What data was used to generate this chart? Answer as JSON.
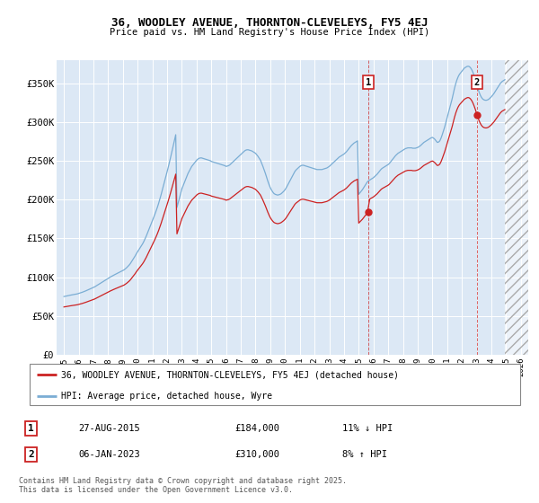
{
  "title": "36, WOODLEY AVENUE, THORNTON-CLEVELEYS, FY5 4EJ",
  "subtitle": "Price paid vs. HM Land Registry's House Price Index (HPI)",
  "ylim": [
    0,
    380000
  ],
  "yticks": [
    0,
    50000,
    100000,
    150000,
    200000,
    250000,
    300000,
    350000
  ],
  "ytick_labels": [
    "£0",
    "£50K",
    "£100K",
    "£150K",
    "£200K",
    "£250K",
    "£300K",
    "£350K"
  ],
  "background_color": "#dce8f5",
  "plot_bg_color": "#dce8f5",
  "shade_color": "#ccdaee",
  "hpi_color": "#7aadd4",
  "price_color": "#cc2222",
  "marker_color": "#cc2222",
  "sale1_date": 2015.65,
  "sale1_price": 184000,
  "sale1_label": "1",
  "sale2_date": 2023.02,
  "sale2_price": 310000,
  "sale2_label": "2",
  "legend_line1": "36, WOODLEY AVENUE, THORNTON-CLEVELEYS, FY5 4EJ (detached house)",
  "legend_line2": "HPI: Average price, detached house, Wyre",
  "table_row1_label": "1",
  "table_row1_date": "27-AUG-2015",
  "table_row1_price": "£184,000",
  "table_row1_hpi": "11% ↓ HPI",
  "table_row2_label": "2",
  "table_row2_date": "06-JAN-2023",
  "table_row2_price": "£310,000",
  "table_row2_hpi": "8% ↑ HPI",
  "footer": "Contains HM Land Registry data © Crown copyright and database right 2025.\nThis data is licensed under the Open Government Licence v3.0.",
  "hpi_base_values": [
    75000,
    75300,
    75600,
    76000,
    76400,
    76700,
    77000,
    77300,
    77600,
    77900,
    78200,
    78500,
    79000,
    79500,
    80000,
    80600,
    81200,
    81800,
    82500,
    83200,
    83800,
    84500,
    85200,
    85900,
    86600,
    87500,
    88500,
    89500,
    90500,
    91500,
    92500,
    93500,
    94500,
    95500,
    96500,
    97500,
    98500,
    99500,
    100400,
    101300,
    102200,
    103000,
    103800,
    104600,
    105400,
    106200,
    107000,
    107800,
    108500,
    109500,
    110800,
    112200,
    113800,
    115500,
    117500,
    120000,
    122500,
    125000,
    127500,
    130500,
    133000,
    135500,
    138000,
    140500,
    143000,
    146000,
    149500,
    153000,
    157000,
    161000,
    165000,
    169000,
    173000,
    177000,
    181000,
    185500,
    190000,
    195000,
    200500,
    206000,
    212000,
    218000,
    224000,
    230000,
    236000,
    242500,
    249000,
    256000,
    263000,
    270000,
    277000,
    284000,
    190000,
    196000,
    202000,
    208000,
    214000,
    218000,
    222000,
    226000,
    230000,
    234000,
    237000,
    240000,
    243000,
    245000,
    247000,
    249000,
    251000,
    252500,
    253500,
    254000,
    254000,
    253500,
    253000,
    252500,
    252000,
    251500,
    251000,
    250500,
    249500,
    249000,
    248500,
    248000,
    247500,
    247000,
    246500,
    246000,
    245500,
    245000,
    244500,
    244000,
    243000,
    243500,
    244000,
    245000,
    246500,
    248000,
    249500,
    251000,
    252500,
    254000,
    255500,
    257000,
    258500,
    260000,
    261500,
    263000,
    264000,
    264500,
    264500,
    264000,
    263500,
    263000,
    262000,
    261000,
    260000,
    258000,
    256000,
    253500,
    251000,
    247000,
    243000,
    238500,
    234000,
    229000,
    224000,
    219500,
    215500,
    212500,
    210000,
    208000,
    207000,
    206500,
    206000,
    206500,
    207000,
    208000,
    209500,
    211000,
    213000,
    215500,
    218500,
    221500,
    224500,
    227500,
    230500,
    233500,
    236500,
    238500,
    240000,
    241500,
    243000,
    244000,
    244500,
    244500,
    244000,
    243500,
    243000,
    242500,
    242000,
    241500,
    241000,
    240500,
    240000,
    239500,
    239000,
    239000,
    239000,
    239000,
    239000,
    239500,
    240000,
    240500,
    241000,
    242000,
    243000,
    244500,
    246000,
    247500,
    249000,
    250500,
    252000,
    253500,
    255000,
    256000,
    257000,
    258000,
    259000,
    260500,
    262000,
    264000,
    266000,
    268000,
    270000,
    271500,
    273000,
    274000,
    275000,
    276000,
    207000,
    209000,
    211000,
    213000,
    215500,
    218000,
    220500,
    223000,
    224500,
    225500,
    226500,
    227500,
    228500,
    230000,
    231500,
    233000,
    235000,
    237000,
    239000,
    240500,
    241500,
    242500,
    243500,
    244500,
    245500,
    247000,
    249000,
    251000,
    253000,
    255000,
    257000,
    258500,
    260000,
    261000,
    262000,
    263000,
    264000,
    265000,
    266000,
    266500,
    267000,
    267000,
    267000,
    267000,
    266500,
    266500,
    266500,
    267000,
    267500,
    268500,
    269500,
    271000,
    272500,
    274000,
    275000,
    276000,
    277000,
    278000,
    279000,
    280000,
    280500,
    279500,
    278000,
    276000,
    274000,
    274500,
    276000,
    279500,
    284000,
    289000,
    294000,
    300000,
    306000,
    312000,
    318000,
    324000,
    330000,
    337000,
    344000,
    350000,
    355000,
    359000,
    362000,
    364000,
    366000,
    368000,
    370000,
    371000,
    372000,
    372500,
    372000,
    370500,
    368000,
    364500,
    360000,
    355000,
    349000,
    344000,
    339000,
    335000,
    332000,
    330000,
    329000,
    328500,
    328500,
    329000,
    330000,
    331500,
    333000,
    335000,
    337000,
    339500,
    342000,
    344500,
    347000,
    349500,
    351500,
    353000,
    354000,
    355000
  ],
  "xlim": [
    1994.5,
    2026.5
  ],
  "xticks": [
    1995,
    1996,
    1997,
    1998,
    1999,
    2000,
    2001,
    2002,
    2003,
    2004,
    2005,
    2006,
    2007,
    2008,
    2009,
    2010,
    2011,
    2012,
    2013,
    2014,
    2015,
    2016,
    2017,
    2018,
    2019,
    2020,
    2021,
    2022,
    2023,
    2024,
    2025,
    2026
  ],
  "shade_start": 2015.65
}
